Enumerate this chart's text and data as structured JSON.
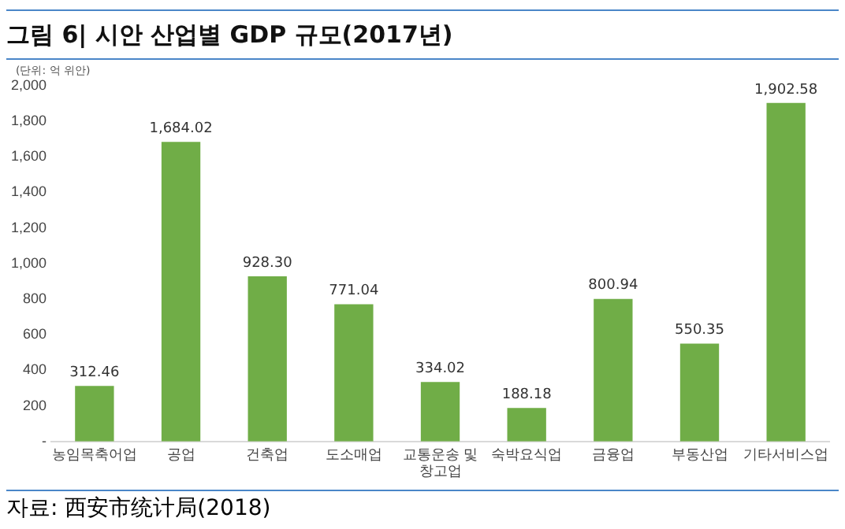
{
  "chart_data": {
    "type": "bar",
    "title": "그림 6| 시안 산업별 GDP 규모(2017년)",
    "subtitle": "(단위: 억 위안)",
    "categories": [
      "농임목축어업",
      "공업",
      "건축업",
      "도소매업",
      "교통운송 및 창고업",
      "숙박요식업",
      "금융업",
      "부동산업",
      "기타서비스업"
    ],
    "values": [
      312.46,
      1684.02,
      928.3,
      771.04,
      334.02,
      188.18,
      800.94,
      550.35,
      1902.58
    ],
    "value_labels": [
      "312.46",
      "1,684.02",
      "928.30",
      "771.04",
      "334.02",
      "188.18",
      "800.94",
      "550.35",
      "1,902.58"
    ],
    "color": "#70ad47",
    "ylim": [
      0,
      2000
    ],
    "yticks": [
      {
        "value": 0,
        "label": "-"
      },
      {
        "value": 200,
        "label": "200"
      },
      {
        "value": 400,
        "label": "400"
      },
      {
        "value": 600,
        "label": "600"
      },
      {
        "value": 800,
        "label": "800"
      },
      {
        "value": 1000,
        "label": "1,000"
      },
      {
        "value": 1200,
        "label": "1,200"
      },
      {
        "value": 1400,
        "label": "1,400"
      },
      {
        "value": 1600,
        "label": "1,600"
      },
      {
        "value": 1800,
        "label": "1,800"
      },
      {
        "value": 2000,
        "label": "2,000"
      }
    ],
    "grid": false,
    "legend": false,
    "annotations": [
      "자료: 西安市统计局(2018)"
    ]
  }
}
